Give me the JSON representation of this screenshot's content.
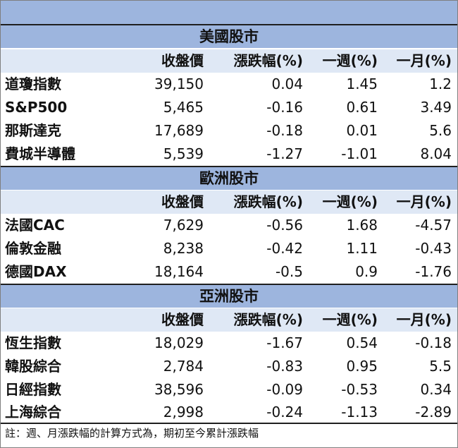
{
  "headers": [
    "收盤價",
    "漲跌幅(%)",
    "一週(%)",
    "一月(%)"
  ],
  "sections": [
    {
      "title": "美國股市",
      "rows": [
        {
          "name": "道瓊指數",
          "close": "39,150",
          "chg": "0.04",
          "wk": "1.45",
          "mo": "1.2"
        },
        {
          "name": "S&P500",
          "close": "5,465",
          "chg": "-0.16",
          "wk": "0.61",
          "mo": "3.49"
        },
        {
          "name": "那斯達克",
          "close": "17,689",
          "chg": "-0.18",
          "wk": "0.01",
          "mo": "5.6"
        },
        {
          "name": "費城半導體",
          "close": "5,539",
          "chg": "-1.27",
          "wk": "-1.01",
          "mo": "8.04"
        }
      ]
    },
    {
      "title": "歐洲股市",
      "rows": [
        {
          "name": "法國CAC",
          "close": "7,629",
          "chg": "-0.56",
          "wk": "1.68",
          "mo": "-4.57"
        },
        {
          "name": "倫敦金融",
          "close": "8,238",
          "chg": "-0.42",
          "wk": "1.11",
          "mo": "-0.43"
        },
        {
          "name": "德國DAX",
          "close": "18,164",
          "chg": "-0.5",
          "wk": "0.9",
          "mo": "-1.76"
        }
      ]
    },
    {
      "title": "亞洲股市",
      "rows": [
        {
          "name": "恆生指數",
          "close": "18,029",
          "chg": "-1.67",
          "wk": "0.54",
          "mo": "-0.18"
        },
        {
          "name": "韓股綜合",
          "close": "2,784",
          "chg": "-0.83",
          "wk": "0.95",
          "mo": "5.5"
        },
        {
          "name": "日經指數",
          "close": "38,596",
          "chg": "-0.09",
          "wk": "-0.53",
          "mo": "0.34"
        },
        {
          "name": "上海綜合",
          "close": "2,998",
          "chg": "-0.24",
          "wk": "-1.13",
          "mo": "-2.89"
        }
      ]
    }
  ],
  "footnote": "註：週、月漲跌幅的計算方式為，期初至今累計漲跌幅",
  "colors": {
    "section_bg": "#9db5de",
    "header_bg": "#dfe8f5",
    "separator": "#1f1f1f"
  }
}
